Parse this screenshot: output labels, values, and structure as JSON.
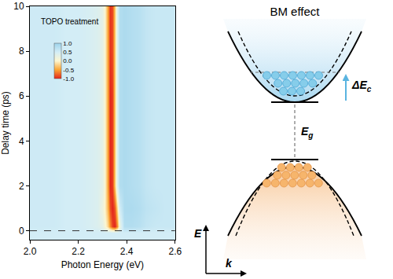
{
  "chart_data": {
    "type": "heatmap",
    "x": [
      2.0,
      2.05,
      2.1,
      2.15,
      2.2,
      2.25,
      2.28,
      2.3,
      2.31,
      2.32,
      2.33,
      2.34,
      2.35,
      2.36,
      2.37,
      2.39,
      2.42,
      2.45,
      2.48,
      2.52,
      2.56,
      2.6
    ],
    "y": [
      -0.4,
      -0.1,
      0.2,
      1,
      2,
      4,
      6,
      8,
      10
    ],
    "z": [
      [
        0.5,
        0.5,
        0.5,
        0.5,
        0.5,
        0.5,
        0.5,
        0.5,
        0.5,
        0.5,
        0.5,
        0.5,
        0.5,
        0.5,
        0.5,
        0.5,
        0.5,
        0.5,
        0.5,
        0.5,
        0.5,
        0.5
      ],
      [
        0.5,
        0.5,
        0.5,
        0.5,
        0.5,
        0.5,
        0.5,
        0.5,
        0.5,
        0.5,
        0.5,
        0.5,
        0.5,
        0.5,
        0.5,
        0.5,
        0.5,
        0.5,
        0.5,
        0.5,
        0.5,
        0.5
      ],
      [
        0.55,
        0.55,
        0.55,
        0.5,
        0.5,
        0.45,
        0.4,
        0.3,
        0.1,
        -0.2,
        -0.6,
        -0.9,
        -1.0,
        -0.6,
        0.2,
        0.8,
        0.8,
        0.75,
        0.65,
        0.6,
        0.6,
        0.6
      ],
      [
        0.55,
        0.55,
        0.55,
        0.5,
        0.5,
        0.45,
        0.4,
        0.2,
        0.0,
        -0.4,
        -0.85,
        -1.0,
        -0.8,
        -0.2,
        0.5,
        0.85,
        0.85,
        0.8,
        0.7,
        0.65,
        0.6,
        0.6
      ],
      [
        0.55,
        0.55,
        0.55,
        0.5,
        0.5,
        0.45,
        0.4,
        0.3,
        0.05,
        -0.5,
        -1.0,
        -0.9,
        -0.3,
        0.4,
        0.8,
        0.85,
        0.8,
        0.75,
        0.65,
        0.6,
        0.6,
        0.6
      ],
      [
        0.55,
        0.55,
        0.55,
        0.5,
        0.5,
        0.45,
        0.4,
        0.3,
        0.05,
        -0.5,
        -1.0,
        -0.9,
        -0.3,
        0.4,
        0.8,
        0.85,
        0.8,
        0.75,
        0.65,
        0.6,
        0.6,
        0.6
      ],
      [
        0.55,
        0.55,
        0.55,
        0.5,
        0.5,
        0.45,
        0.4,
        0.3,
        0.05,
        -0.5,
        -1.0,
        -0.9,
        -0.3,
        0.4,
        0.8,
        0.85,
        0.8,
        0.75,
        0.65,
        0.6,
        0.6,
        0.6
      ],
      [
        0.55,
        0.55,
        0.55,
        0.5,
        0.5,
        0.45,
        0.4,
        0.3,
        0.05,
        -0.5,
        -0.95,
        -0.85,
        -0.3,
        0.4,
        0.8,
        0.85,
        0.8,
        0.75,
        0.65,
        0.6,
        0.6,
        0.6
      ],
      [
        0.55,
        0.55,
        0.55,
        0.5,
        0.5,
        0.45,
        0.4,
        0.3,
        0.05,
        -0.5,
        -0.95,
        -0.85,
        -0.3,
        0.4,
        0.8,
        0.85,
        0.8,
        0.75,
        0.65,
        0.6,
        0.6,
        0.6
      ]
    ],
    "xlim": [
      2.0,
      2.6
    ],
    "xticks": [
      {
        "value": 2.0,
        "label": "2.0"
      },
      {
        "value": 2.2,
        "label": "2.2"
      },
      {
        "value": 2.4,
        "label": "2.4"
      },
      {
        "value": 2.6,
        "label": "2.6"
      }
    ],
    "ylim": [
      -0.4,
      10
    ],
    "yticks": [
      0,
      2,
      4,
      6,
      8,
      10
    ],
    "x_label": "Photon Energy (eV)",
    "y_label": "Delay time (ps)",
    "annotations": [
      {
        "text": "TOPO treatment",
        "x": 2.04,
        "y": 9.3
      }
    ],
    "colorbar": {
      "range": [
        -1,
        1
      ],
      "ticks": [
        {
          "value": 1,
          "label": "1.0"
        },
        {
          "value": 0.5,
          "label": "0.5"
        },
        {
          "value": 0,
          "label": "0.0"
        },
        {
          "value": -0.5,
          "label": "-0.5"
        },
        {
          "value": -1,
          "label": "-1.0"
        }
      ]
    },
    "reference_line": {
      "y": 0,
      "line_style": "dashed"
    }
  },
  "diagram": {
    "title": "BM effect",
    "shift_label": {
      "main": "ΔE",
      "sub": "c"
    },
    "gap_label": {
      "main": "E",
      "sub": "g"
    },
    "energy_axis": "E",
    "momentum_axis": "k"
  }
}
